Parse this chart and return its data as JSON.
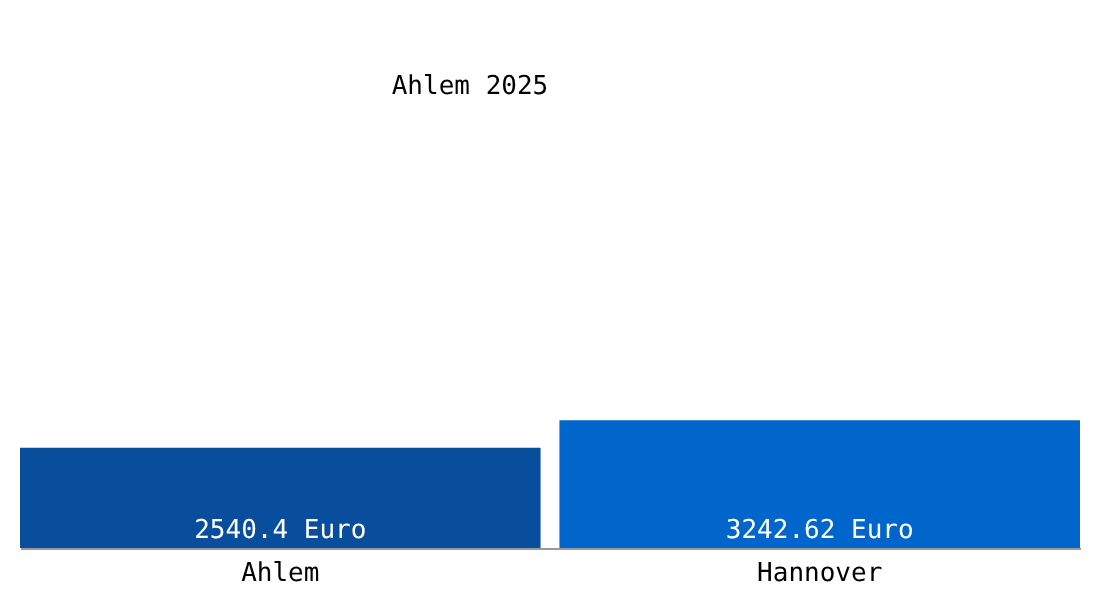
{
  "chart_data": {
    "type": "bar",
    "title": "Ahlem 2025",
    "categories": [
      "Ahlem",
      "Hannover"
    ],
    "values": [
      2540.4,
      3242.62
    ],
    "colors": [
      "#084e9c",
      "#0066cc"
    ],
    "value_labels": [
      "2540.4 Euro",
      "3242.62 Euro"
    ]
  }
}
